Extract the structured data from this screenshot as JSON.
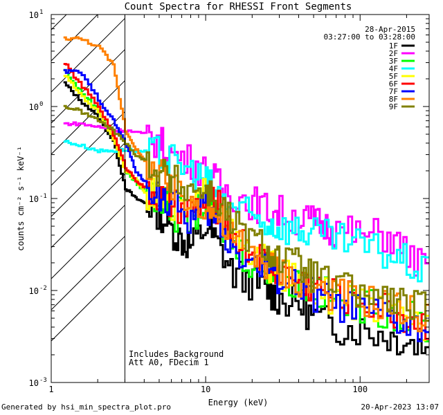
{
  "chart_data": {
    "type": "line",
    "title": "Count Spectra for RHESSI Front Segments",
    "xlabel": "Energy (keV)",
    "ylabel": "counts cm⁻² s⁻¹ keV⁻¹",
    "xscale": "log",
    "yscale": "log",
    "xlim": [
      1,
      280
    ],
    "ylim": [
      0.001,
      10
    ],
    "x_ticks": [
      {
        "value": 1,
        "label": "1"
      },
      {
        "value": 10,
        "label": "10"
      },
      {
        "value": 100,
        "label": "100"
      }
    ],
    "y_ticks": [
      {
        "value": 10,
        "base": "10",
        "exp": "1"
      },
      {
        "value": 1,
        "base": "10",
        "exp": "0"
      },
      {
        "value": 0.1,
        "base": "10",
        "exp": "-1"
      },
      {
        "value": 0.01,
        "base": "10",
        "exp": "-2"
      },
      {
        "value": 0.001,
        "base": "10",
        "exp": "-3"
      }
    ],
    "hatch_region_keV": [
      1,
      3
    ],
    "threshold_keV": 3,
    "date": "28-Apr-2015",
    "time_range": "03:27:00 to 03:28:00",
    "annotation_lines": [
      "Includes Background",
      "Att A0, FDecim 1"
    ],
    "legend_position": "top-right",
    "series": [
      {
        "name": "1F",
        "color": "#000000",
        "points": [
          [
            1.2,
            1.8
          ],
          [
            1.5,
            1.2
          ],
          [
            2,
            0.75
          ],
          [
            2.5,
            0.42
          ],
          [
            3,
            0.13
          ],
          [
            3.5,
            0.1
          ],
          [
            4,
            0.09
          ],
          [
            5,
            0.07
          ],
          [
            6,
            0.045
          ],
          [
            7,
            0.035
          ],
          [
            8,
            0.03
          ],
          [
            10,
            0.05
          ],
          [
            12,
            0.03
          ],
          [
            15,
            0.015
          ],
          [
            20,
            0.012
          ],
          [
            25,
            0.01
          ],
          [
            30,
            0.008
          ],
          [
            40,
            0.007
          ],
          [
            50,
            0.005
          ],
          [
            70,
            0.004
          ],
          [
            100,
            0.0038
          ],
          [
            150,
            0.0032
          ],
          [
            200,
            0.0028
          ],
          [
            280,
            0.0024
          ]
        ]
      },
      {
        "name": "2F",
        "color": "#ff00ff",
        "points": [
          [
            1.2,
            0.65
          ],
          [
            1.5,
            0.65
          ],
          [
            2,
            0.6
          ],
          [
            2.5,
            0.55
          ],
          [
            3,
            0.55
          ],
          [
            4,
            0.5
          ],
          [
            5,
            0.4
          ],
          [
            6,
            0.3
          ],
          [
            8,
            0.25
          ],
          [
            10,
            0.19
          ],
          [
            12,
            0.14
          ],
          [
            15,
            0.11
          ],
          [
            20,
            0.09
          ],
          [
            25,
            0.075
          ],
          [
            30,
            0.07
          ],
          [
            40,
            0.06
          ],
          [
            50,
            0.055
          ],
          [
            60,
            0.05
          ],
          [
            70,
            0.045
          ],
          [
            100,
            0.04
          ],
          [
            150,
            0.04
          ],
          [
            200,
            0.025
          ],
          [
            280,
            0.015
          ]
        ]
      },
      {
        "name": "3F",
        "color": "#00ff00",
        "points": [
          [
            1.2,
            2.5
          ],
          [
            1.5,
            1.5
          ],
          [
            2,
            0.9
          ],
          [
            2.5,
            0.45
          ],
          [
            3,
            0.2
          ],
          [
            3.5,
            0.15
          ],
          [
            4,
            0.12
          ],
          [
            5,
            0.1
          ],
          [
            6,
            0.07
          ],
          [
            8,
            0.06
          ],
          [
            10,
            0.1
          ],
          [
            12,
            0.06
          ],
          [
            15,
            0.03
          ],
          [
            20,
            0.02
          ],
          [
            25,
            0.018
          ],
          [
            30,
            0.015
          ],
          [
            40,
            0.012
          ],
          [
            50,
            0.01
          ],
          [
            70,
            0.008
          ],
          [
            100,
            0.007
          ],
          [
            150,
            0.006
          ],
          [
            200,
            0.005
          ],
          [
            280,
            0.004
          ]
        ]
      },
      {
        "name": "4F",
        "color": "#00ffff",
        "points": [
          [
            1.2,
            0.42
          ],
          [
            1.5,
            0.38
          ],
          [
            2,
            0.33
          ],
          [
            2.5,
            0.33
          ],
          [
            3,
            0.34
          ],
          [
            4,
            0.32
          ],
          [
            5,
            0.3
          ],
          [
            6,
            0.25
          ],
          [
            8,
            0.2
          ],
          [
            10,
            0.15
          ],
          [
            12,
            0.11
          ],
          [
            15,
            0.08
          ],
          [
            20,
            0.06
          ],
          [
            25,
            0.055
          ],
          [
            30,
            0.05
          ],
          [
            40,
            0.045
          ],
          [
            50,
            0.04
          ],
          [
            70,
            0.035
          ],
          [
            100,
            0.03
          ],
          [
            150,
            0.025
          ],
          [
            200,
            0.02
          ],
          [
            280,
            0.014
          ]
        ]
      },
      {
        "name": "5F",
        "color": "#ffff00",
        "points": [
          [
            1.2,
            2.2
          ],
          [
            1.5,
            1.4
          ],
          [
            2,
            0.85
          ],
          [
            2.5,
            0.45
          ],
          [
            3,
            0.2
          ],
          [
            3.5,
            0.16
          ],
          [
            4,
            0.12
          ],
          [
            5,
            0.1
          ],
          [
            6,
            0.08
          ],
          [
            8,
            0.07
          ],
          [
            10,
            0.12
          ],
          [
            12,
            0.07
          ],
          [
            15,
            0.035
          ],
          [
            20,
            0.022
          ],
          [
            25,
            0.02
          ],
          [
            30,
            0.015
          ],
          [
            40,
            0.012
          ],
          [
            50,
            0.01
          ],
          [
            70,
            0.008
          ],
          [
            100,
            0.007
          ],
          [
            150,
            0.006
          ],
          [
            200,
            0.005
          ],
          [
            280,
            0.004
          ]
        ]
      },
      {
        "name": "6F",
        "color": "#ff0000",
        "points": [
          [
            1.2,
            3
          ],
          [
            1.5,
            1.8
          ],
          [
            2,
            1.0
          ],
          [
            2.5,
            0.5
          ],
          [
            3,
            0.22
          ],
          [
            3.5,
            0.16
          ],
          [
            4,
            0.13
          ],
          [
            5,
            0.1
          ],
          [
            6,
            0.08
          ],
          [
            8,
            0.07
          ],
          [
            10,
            0.1
          ],
          [
            12,
            0.08
          ],
          [
            15,
            0.04
          ],
          [
            20,
            0.025
          ],
          [
            25,
            0.02
          ],
          [
            30,
            0.016
          ],
          [
            40,
            0.013
          ],
          [
            50,
            0.011
          ],
          [
            70,
            0.009
          ],
          [
            100,
            0.008
          ],
          [
            150,
            0.006
          ],
          [
            200,
            0.005
          ],
          [
            280,
            0.004
          ]
        ]
      },
      {
        "name": "7F",
        "color": "#0000ff",
        "points": [
          [
            1.2,
            2.4
          ],
          [
            1.5,
            2.4
          ],
          [
            2,
            1.2
          ],
          [
            2.5,
            0.7
          ],
          [
            3,
            0.4
          ],
          [
            3.5,
            0.2
          ],
          [
            4,
            0.15
          ],
          [
            5,
            0.11
          ],
          [
            6,
            0.08
          ],
          [
            8,
            0.06
          ],
          [
            10,
            0.08
          ],
          [
            12,
            0.05
          ],
          [
            15,
            0.03
          ],
          [
            20,
            0.02
          ],
          [
            25,
            0.017
          ],
          [
            30,
            0.014
          ],
          [
            40,
            0.011
          ],
          [
            50,
            0.009
          ],
          [
            70,
            0.007
          ],
          [
            100,
            0.006
          ],
          [
            150,
            0.005
          ],
          [
            200,
            0.004
          ],
          [
            280,
            0.0035
          ]
        ]
      },
      {
        "name": "8F",
        "color": "#ff8000",
        "points": [
          [
            1.2,
            5.5
          ],
          [
            1.5,
            5.5
          ],
          [
            2,
            4.5
          ],
          [
            2.5,
            2.8
          ],
          [
            3,
            0.55
          ],
          [
            3.5,
            0.35
          ],
          [
            4,
            0.25
          ],
          [
            5,
            0.18
          ],
          [
            6,
            0.12
          ],
          [
            8,
            0.09
          ],
          [
            10,
            0.09
          ],
          [
            12,
            0.06
          ],
          [
            15,
            0.035
          ],
          [
            20,
            0.025
          ],
          [
            25,
            0.02
          ],
          [
            30,
            0.016
          ],
          [
            40,
            0.013
          ],
          [
            50,
            0.011
          ],
          [
            70,
            0.009
          ],
          [
            100,
            0.008
          ],
          [
            150,
            0.007
          ],
          [
            200,
            0.006
          ],
          [
            280,
            0.005
          ]
        ]
      },
      {
        "name": "9F",
        "color": "#808000",
        "points": [
          [
            1.2,
            1.0
          ],
          [
            1.5,
            0.9
          ],
          [
            2,
            0.7
          ],
          [
            2.5,
            0.55
          ],
          [
            3,
            0.4
          ],
          [
            3.5,
            0.3
          ],
          [
            4,
            0.26
          ],
          [
            5,
            0.2
          ],
          [
            6,
            0.15
          ],
          [
            8,
            0.13
          ],
          [
            10,
            0.12
          ],
          [
            12,
            0.09
          ],
          [
            15,
            0.05
          ],
          [
            20,
            0.035
          ],
          [
            25,
            0.028
          ],
          [
            30,
            0.022
          ],
          [
            40,
            0.018
          ],
          [
            50,
            0.014
          ],
          [
            70,
            0.011
          ],
          [
            100,
            0.009
          ],
          [
            150,
            0.008
          ],
          [
            200,
            0.007
          ],
          [
            280,
            0.006
          ]
        ]
      }
    ]
  },
  "footer": {
    "generated_by": "Generated by hsi_min_spectra_plot.pro",
    "timestamp": "20-Apr-2023 13:07"
  }
}
